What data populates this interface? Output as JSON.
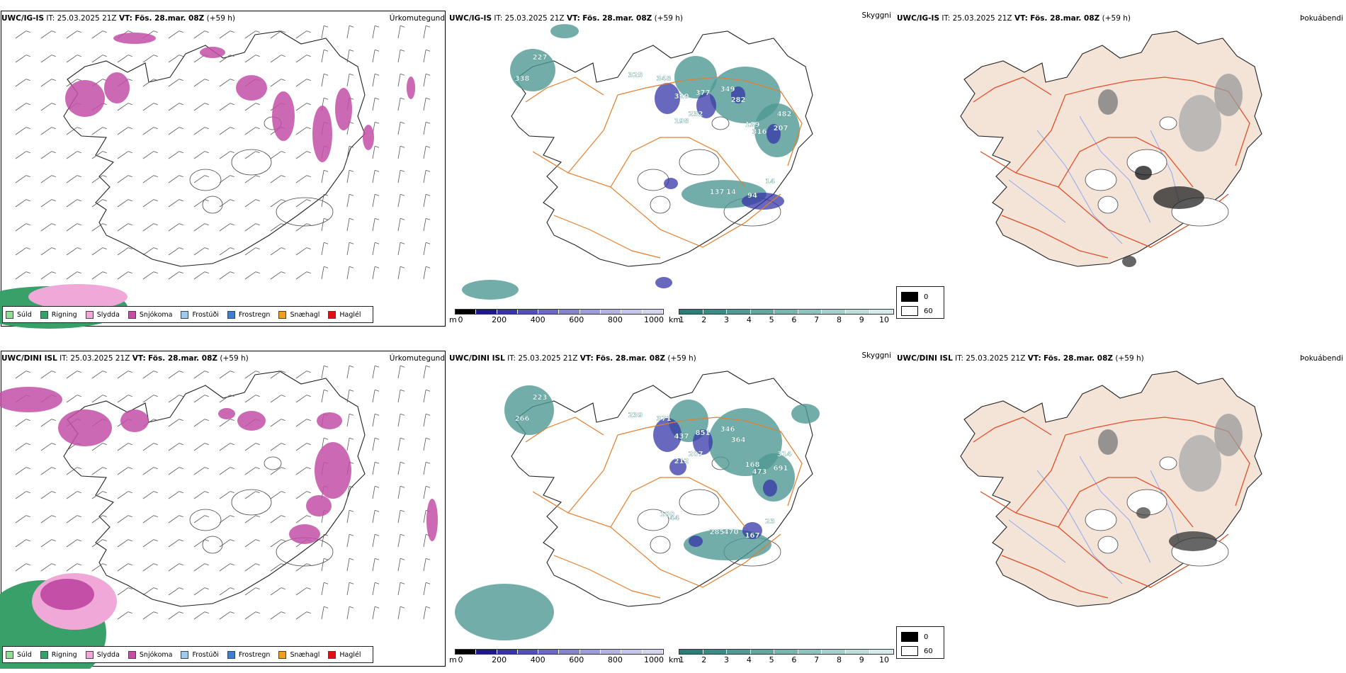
{
  "rows": [
    {
      "model": "UWC/IG-IS",
      "it_label": "IT:",
      "it_value": "25.03.2025 21Z",
      "vt_label": "VT:",
      "vt_value": "Fös. 28.mar. 08Z",
      "lead": "(+59 h)",
      "panel1_title": "Úrkomutegund",
      "panel2_title": "Skyggni",
      "panel3_title": "Þokuábendi",
      "labels": [
        "338",
        "227",
        "325",
        "348",
        "320",
        "377",
        "349",
        "282",
        "139",
        "482",
        "232",
        "198",
        "316",
        "207",
        "137",
        "14",
        "94",
        "14"
      ]
    },
    {
      "model": "UWC/DINI ISL",
      "it_label": "IT:",
      "it_value": "25.03.2025 21Z",
      "vt_label": "VT:",
      "vt_value": "Fös. 28.mar. 08Z",
      "lead": "(+59 h)",
      "panel1_title": "Úrkomutegund",
      "panel2_title": "Skyggni",
      "panel3_title": "Þokuábendi",
      "labels": [
        "266",
        "223",
        "239",
        "371",
        "437",
        "851",
        "346",
        "364",
        "168",
        "314",
        "207",
        "212",
        "473",
        "691",
        "285",
        "470",
        "167",
        "23",
        "44",
        "100"
      ]
    }
  ],
  "precip_legend": [
    {
      "label": "Súld",
      "color": "#8fe08f"
    },
    {
      "label": "Rigning",
      "color": "#3aa06a"
    },
    {
      "label": "Slydda",
      "color": "#f0a8d8"
    },
    {
      "label": "Snjókoma",
      "color": "#c34fa7"
    },
    {
      "label": "Frostúði",
      "color": "#9ec9f0"
    },
    {
      "label": "Frostregn",
      "color": "#3f7fcf"
    },
    {
      "label": "Snæhagl",
      "color": "#f0a020"
    },
    {
      "label": "Haglél",
      "color": "#e01010"
    }
  ],
  "ceiling_bar": {
    "unit": "m",
    "ticks": [
      "0",
      "200",
      "400",
      "600",
      "800",
      "1000"
    ],
    "colors": [
      "#000000",
      "#1a1a8c",
      "#3535a8",
      "#5050b8",
      "#6a6ac4",
      "#8484cf",
      "#9c9cd8",
      "#b2b2e0",
      "#c4c4e8",
      "#d4d4ef"
    ]
  },
  "vis_bar": {
    "unit": "km",
    "ticks": [
      "1",
      "2",
      "3",
      "4",
      "5",
      "6",
      "7",
      "8",
      "9",
      "10"
    ],
    "colors": [
      "#2a7c78",
      "#3a8a86",
      "#4f9893",
      "#63a6a1",
      "#79b4af",
      "#8fc2bd",
      "#a6d0cb",
      "#bdded9",
      "#d4ebe7"
    ]
  },
  "fog_legend": [
    {
      "label": "0",
      "color": "#000000"
    },
    {
      "label": "60",
      "color": "#ffffff"
    }
  ]
}
